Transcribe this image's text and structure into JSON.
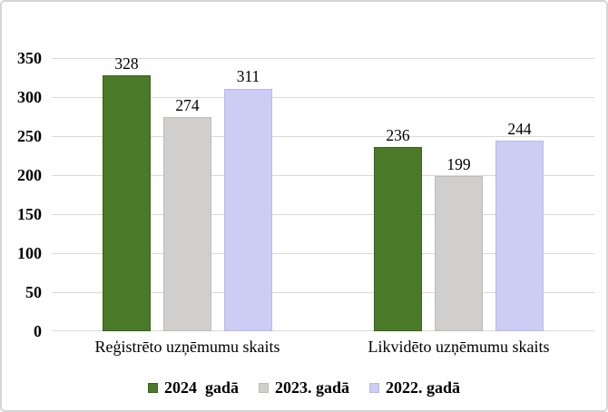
{
  "chart_data": {
    "type": "bar",
    "title": "",
    "xlabel": "",
    "ylabel": "",
    "categories": [
      "Reģistrēto uzņēmumu skaits",
      "Likvidēto uzņēmumu skaits"
    ],
    "series": [
      {
        "name": "2024  gadā",
        "values": [
          328,
          236
        ],
        "color": "#4a7a28",
        "border_color": "#3a611d"
      },
      {
        "name": "2023. gadā",
        "values": [
          274,
          199
        ],
        "color": "#d0cfce",
        "border_color": "#bdbcbb"
      },
      {
        "name": "2022. gadā",
        "values": [
          311,
          244
        ],
        "color": "#ccccf5",
        "border_color": "#b9b9ee"
      }
    ],
    "ylim": [
      0,
      350
    ],
    "yticks": [
      0,
      50,
      100,
      150,
      200,
      250,
      300,
      350
    ],
    "grid": true,
    "gridline_color": "#d9d9d9",
    "data_labels": true,
    "legend_position": "bottom"
  }
}
